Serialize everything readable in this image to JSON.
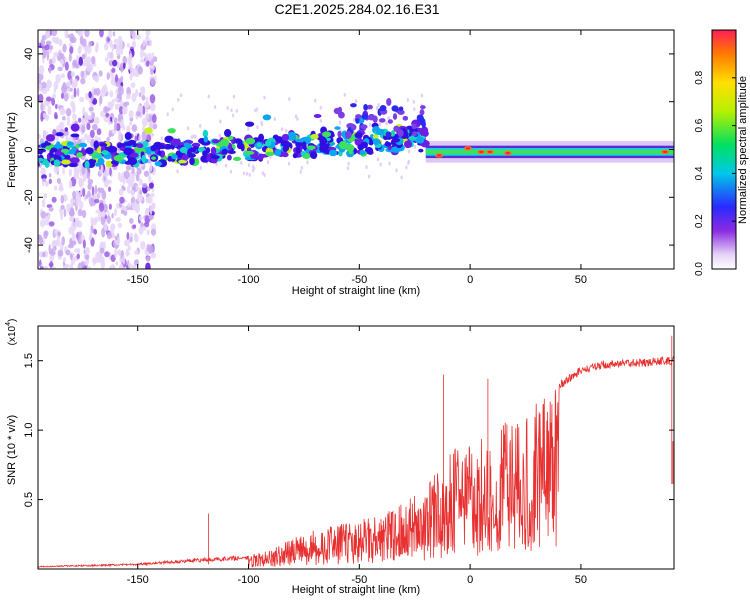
{
  "title": "C2E1.2025.284.02.16.E31",
  "chart_data": [
    {
      "type": "heatmap",
      "name": "spectrogram",
      "xlabel": "Height of straight line (km)",
      "ylabel": "Frequency (Hz)",
      "xlim": [
        -195,
        92
      ],
      "ylim": [
        -50,
        50
      ],
      "xticks": [
        -150,
        -100,
        -50,
        0,
        50
      ],
      "yticks": [
        -40,
        -20,
        0,
        20,
        40
      ],
      "colorbar": {
        "label": "Normalized spectral amplitude",
        "range": [
          0,
          1
        ],
        "ticks": [
          "0.0",
          "0.2",
          "0.4",
          "0.6",
          "0.8"
        ]
      },
      "features": {
        "noisy_region_x": [
          -195,
          -145
        ],
        "wandering_signal_x": [
          -150,
          -20
        ],
        "stable_signal_x": [
          -20,
          92
        ],
        "stable_frequency": -1
      }
    },
    {
      "type": "line",
      "name": "snr",
      "xlabel": "Height of straight line (km)",
      "ylabel": "SNR (10 * v/v)",
      "yscale_label": "(x10",
      "yscale_exp": "4",
      "xlim": [
        -195,
        92
      ],
      "ylim": [
        0,
        1.75
      ],
      "xticks": [
        -150,
        -100,
        -50,
        0,
        50
      ],
      "yticks": [
        "0.5",
        "1.0",
        "1.5"
      ],
      "color": "#e83030",
      "envelope": {
        "x": [
          -195,
          -150,
          -135,
          -120,
          -100,
          -90,
          -80,
          -70,
          -60,
          -50,
          -40,
          -30,
          -20,
          -15,
          -10,
          0,
          10,
          20,
          30,
          40,
          50,
          60,
          70,
          80,
          88,
          92
        ],
        "y": [
          0.02,
          0.04,
          0.06,
          0.08,
          0.1,
          0.14,
          0.22,
          0.28,
          0.32,
          0.36,
          0.4,
          0.5,
          0.6,
          0.75,
          0.85,
          0.92,
          1.0,
          1.1,
          1.22,
          1.35,
          1.46,
          1.5,
          1.51,
          1.52,
          1.53,
          1.53
        ]
      },
      "spikes": [
        {
          "x": -118,
          "y": 0.4
        },
        {
          "x": -12,
          "y": 1.4
        },
        {
          "x": 8,
          "y": 1.37
        },
        {
          "x": 91,
          "y": 1.68
        },
        {
          "x": 91.5,
          "y": 0.92
        }
      ]
    }
  ]
}
